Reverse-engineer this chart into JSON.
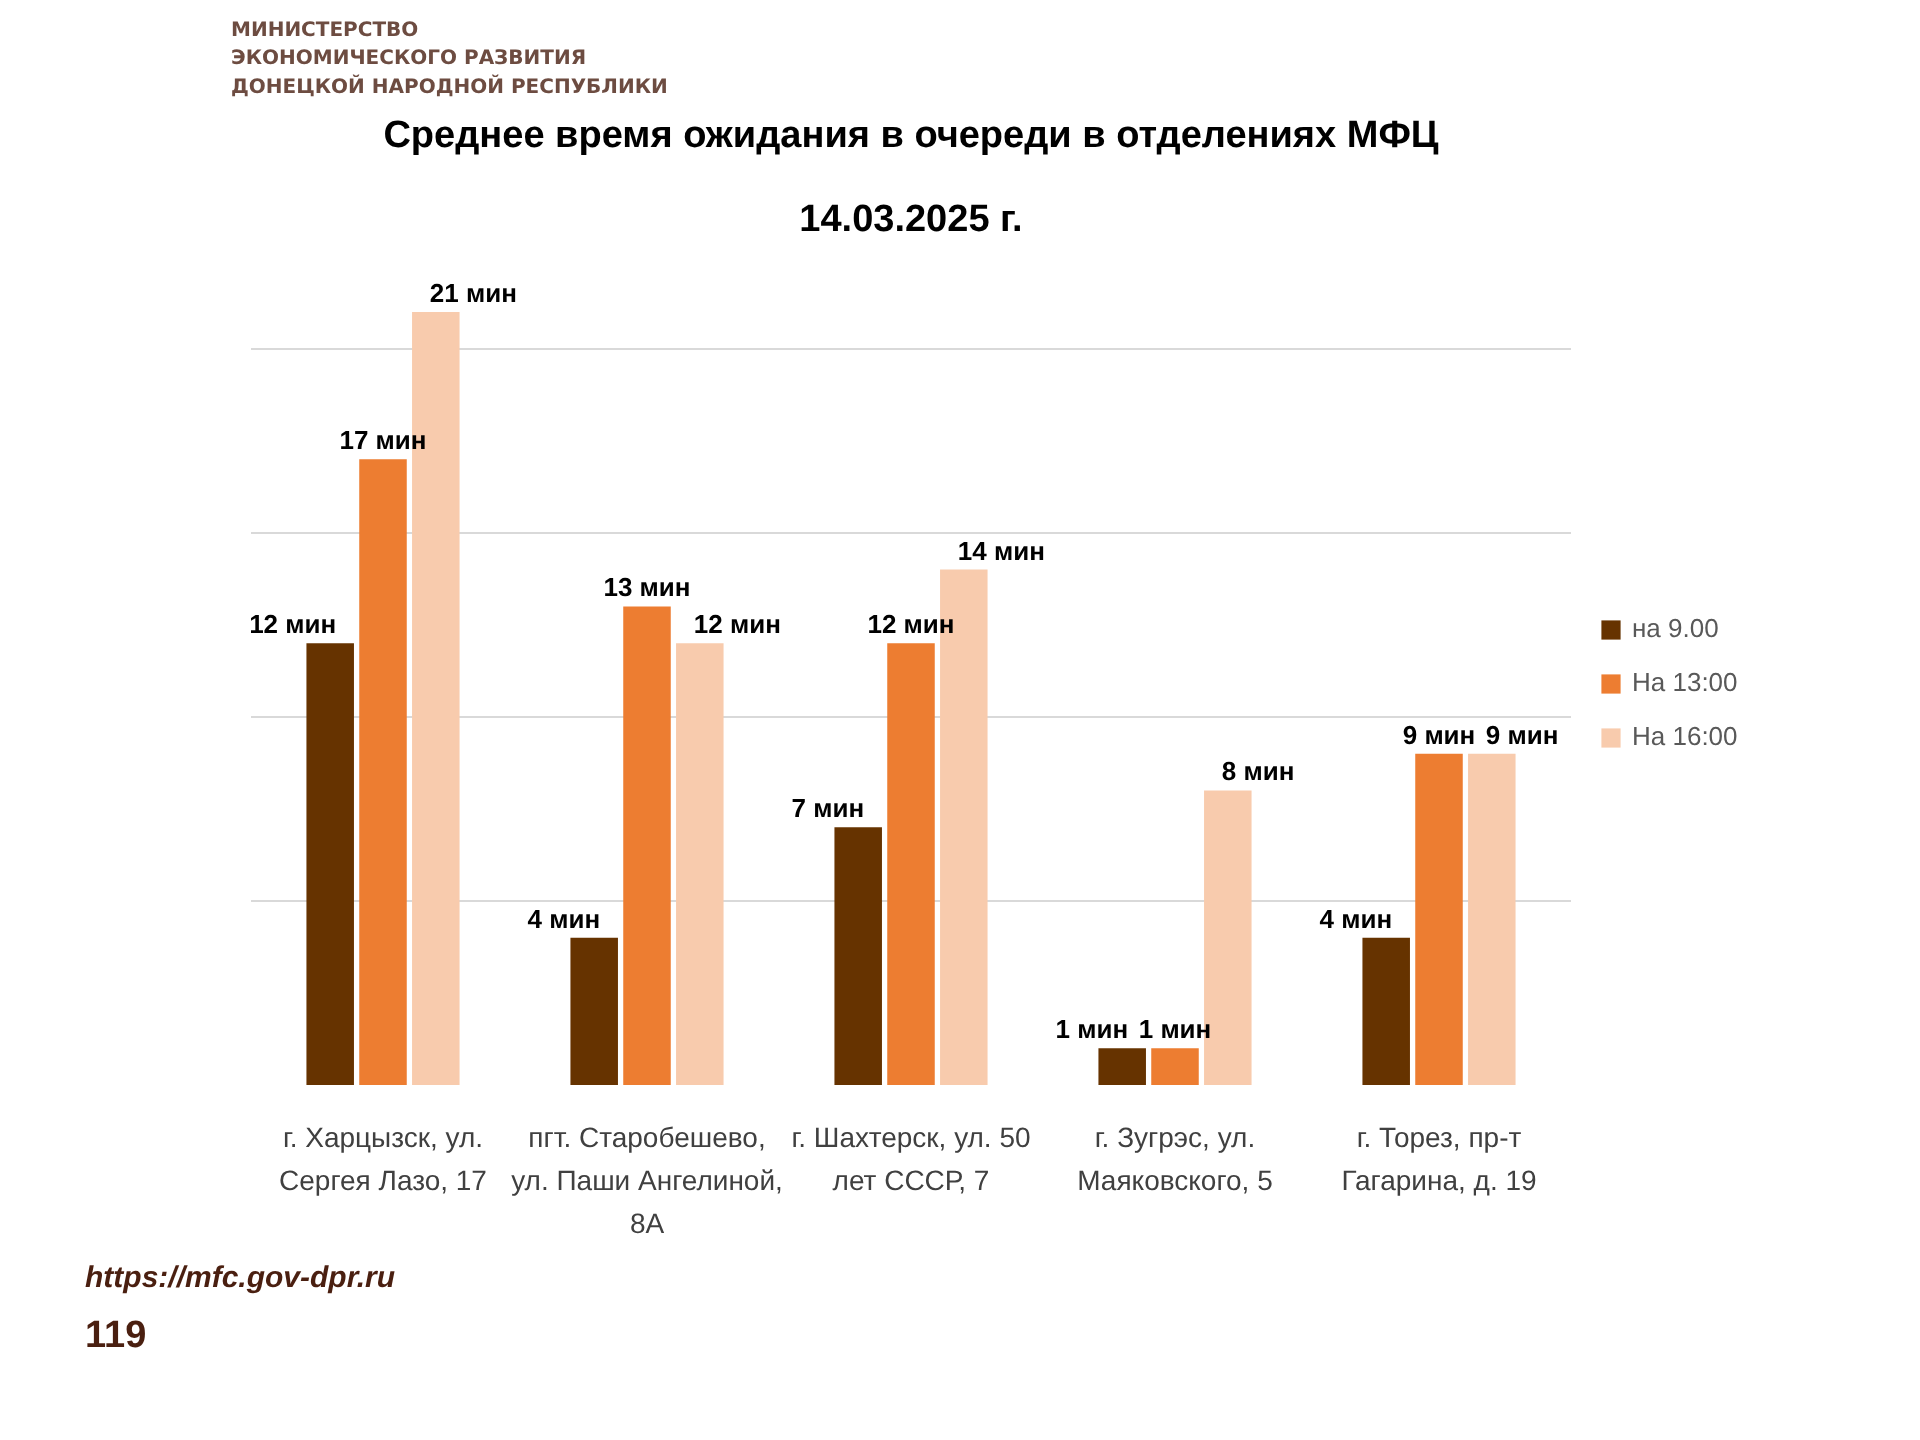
{
  "chart_data": {
    "type": "bar",
    "title": "Среднее время ожидания в очереди в отделениях МФЦ",
    "subtitle": "14.03.2025 г.",
    "categories": [
      "г. Харцызск, ул. Сергея Лазо, 17",
      "пгт. Старобешево, ул. Паши Ангелиной, 8А",
      "г. Шахтерск, ул. 50 лет СССР, 7",
      "г. Зугрэс, ул. Маяковского, 5",
      "г. Торез, пр-т Гагарина, д. 19"
    ],
    "series": [
      {
        "name": "на 9.00",
        "color": "#663300",
        "values": [
          12,
          4,
          7,
          1,
          4
        ],
        "value_labels": [
          "12 мин",
          "4 мин",
          "7 мин",
          "1 мин",
          "4 мин"
        ]
      },
      {
        "name": "На 13:00",
        "color": "#ed7d31",
        "values": [
          17,
          13,
          12,
          1,
          9
        ],
        "value_labels": [
          "17 мин",
          "13 мин",
          "12 мин",
          "1 мин",
          "9 мин"
        ]
      },
      {
        "name": "На 16:00",
        "color": "#f8cbad",
        "values": [
          21,
          12,
          14,
          8,
          9
        ],
        "value_labels": [
          "21 мин",
          "12 мин",
          "14 мин",
          "8 мин",
          "9 мин"
        ]
      }
    ],
    "tick_labels": "x",
    "grid": "y",
    "legend": "right",
    "annotations": [
      "МИНИСТЕРСТВО\nЭКОНОМИЧЕСКОГО РАЗВИТИЯ\nДОНЕЦКОЙ НАРОДНОЙ РЕСПУБЛИКИ",
      "https://mfc.gov-dpr.ru",
      "119"
    ]
  }
}
